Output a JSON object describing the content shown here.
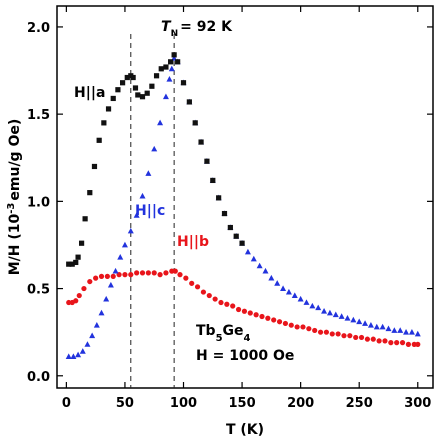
{
  "chart_data": {
    "type": "scatter",
    "xlabel": "T (K)",
    "ylabel_parts": [
      "M/H (10",
      "-3",
      "emu/g Oe)"
    ],
    "xlim": [
      -8,
      313
    ],
    "ylim": [
      -0.07,
      2.12
    ],
    "xticks": [
      0,
      50,
      100,
      150,
      200,
      250,
      300
    ],
    "yticks": [
      "0.0",
      "0.5",
      "1.0",
      "1.5",
      "2.0"
    ],
    "ytick_values": [
      0.0,
      0.5,
      1.0,
      1.5,
      2.0
    ],
    "grid": false,
    "vlines": [
      55,
      92
    ],
    "annotation_tn": {
      "prefix": "T",
      "sub": "N",
      "suffix": "= 92 K",
      "x": 92
    },
    "sample_parts": [
      "Tb",
      "5",
      "Ge",
      "4"
    ],
    "field_text": "H = 1000 Oe",
    "series": [
      {
        "name": "H||a",
        "color": "#111111",
        "marker": "square",
        "points": [
          [
            2,
            0.64
          ],
          [
            5,
            0.64
          ],
          [
            8,
            0.65
          ],
          [
            10,
            0.68
          ],
          [
            13,
            0.76
          ],
          [
            16,
            0.9
          ],
          [
            20,
            1.05
          ],
          [
            24,
            1.2
          ],
          [
            28,
            1.35
          ],
          [
            32,
            1.45
          ],
          [
            36,
            1.53
          ],
          [
            40,
            1.59
          ],
          [
            44,
            1.64
          ],
          [
            48,
            1.68
          ],
          [
            52,
            1.71
          ],
          [
            55,
            1.72
          ],
          [
            57,
            1.71
          ],
          [
            59,
            1.65
          ],
          [
            61,
            1.61
          ],
          [
            65,
            1.6
          ],
          [
            69,
            1.62
          ],
          [
            73,
            1.66
          ],
          [
            77,
            1.72
          ],
          [
            81,
            1.76
          ],
          [
            85,
            1.77
          ],
          [
            89,
            1.8
          ],
          [
            92,
            1.84
          ],
          [
            95,
            1.8
          ],
          [
            100,
            1.68
          ],
          [
            105,
            1.57
          ],
          [
            110,
            1.45
          ],
          [
            115,
            1.34
          ],
          [
            120,
            1.23
          ],
          [
            125,
            1.12
          ],
          [
            130,
            1.02
          ],
          [
            135,
            0.93
          ],
          [
            140,
            0.85
          ],
          [
            145,
            0.8
          ],
          [
            150,
            0.76
          ]
        ]
      },
      {
        "name": "H||c",
        "color": "#2233dd",
        "marker": "triangle",
        "points": [
          [
            2,
            0.11
          ],
          [
            6,
            0.11
          ],
          [
            10,
            0.12
          ],
          [
            14,
            0.14
          ],
          [
            18,
            0.18
          ],
          [
            22,
            0.23
          ],
          [
            26,
            0.29
          ],
          [
            30,
            0.36
          ],
          [
            34,
            0.44
          ],
          [
            38,
            0.52
          ],
          [
            42,
            0.6
          ],
          [
            46,
            0.68
          ],
          [
            50,
            0.75
          ],
          [
            55,
            0.83
          ],
          [
            60,
            0.92
          ],
          [
            65,
            1.03
          ],
          [
            70,
            1.16
          ],
          [
            75,
            1.3
          ],
          [
            80,
            1.45
          ],
          [
            85,
            1.6
          ],
          [
            88,
            1.7
          ],
          [
            90,
            1.76
          ],
          [
            92,
            1.82
          ],
          [
            95,
            1.8
          ],
          [
            100,
            1.68
          ],
          [
            105,
            1.57
          ],
          [
            110,
            1.45
          ],
          [
            115,
            1.34
          ],
          [
            120,
            1.23
          ],
          [
            125,
            1.12
          ],
          [
            130,
            1.02
          ],
          [
            135,
            0.93
          ],
          [
            140,
            0.85
          ],
          [
            145,
            0.8
          ],
          [
            150,
            0.76
          ],
          [
            155,
            0.71
          ],
          [
            160,
            0.67
          ],
          [
            165,
            0.63
          ],
          [
            170,
            0.6
          ],
          [
            175,
            0.56
          ],
          [
            180,
            0.53
          ],
          [
            185,
            0.5
          ],
          [
            190,
            0.48
          ],
          [
            195,
            0.46
          ],
          [
            200,
            0.44
          ],
          [
            205,
            0.42
          ],
          [
            210,
            0.4
          ],
          [
            215,
            0.39
          ],
          [
            220,
            0.37
          ],
          [
            225,
            0.36
          ],
          [
            230,
            0.35
          ],
          [
            235,
            0.34
          ],
          [
            240,
            0.33
          ],
          [
            245,
            0.32
          ],
          [
            250,
            0.31
          ],
          [
            255,
            0.3
          ],
          [
            260,
            0.29
          ],
          [
            265,
            0.28
          ],
          [
            270,
            0.28
          ],
          [
            275,
            0.27
          ],
          [
            280,
            0.26
          ],
          [
            285,
            0.26
          ],
          [
            290,
            0.25
          ],
          [
            295,
            0.25
          ],
          [
            300,
            0.24
          ]
        ]
      },
      {
        "name": "H||b",
        "color": "#e8151b",
        "marker": "circle",
        "points": [
          [
            2,
            0.42
          ],
          [
            5,
            0.42
          ],
          [
            8,
            0.43
          ],
          [
            11,
            0.46
          ],
          [
            15,
            0.5
          ],
          [
            20,
            0.54
          ],
          [
            25,
            0.56
          ],
          [
            30,
            0.57
          ],
          [
            35,
            0.57
          ],
          [
            40,
            0.57
          ],
          [
            45,
            0.58
          ],
          [
            50,
            0.58
          ],
          [
            55,
            0.58
          ],
          [
            60,
            0.59
          ],
          [
            65,
            0.59
          ],
          [
            70,
            0.59
          ],
          [
            75,
            0.59
          ],
          [
            80,
            0.58
          ],
          [
            85,
            0.59
          ],
          [
            90,
            0.6
          ],
          [
            93,
            0.6
          ],
          [
            97,
            0.58
          ],
          [
            102,
            0.56
          ],
          [
            107,
            0.53
          ],
          [
            112,
            0.51
          ],
          [
            117,
            0.48
          ],
          [
            122,
            0.46
          ],
          [
            127,
            0.44
          ],
          [
            132,
            0.42
          ],
          [
            137,
            0.41
          ],
          [
            142,
            0.4
          ],
          [
            147,
            0.38
          ],
          [
            152,
            0.37
          ],
          [
            157,
            0.36
          ],
          [
            162,
            0.35
          ],
          [
            167,
            0.34
          ],
          [
            172,
            0.33
          ],
          [
            177,
            0.32
          ],
          [
            182,
            0.31
          ],
          [
            187,
            0.3
          ],
          [
            192,
            0.29
          ],
          [
            197,
            0.28
          ],
          [
            202,
            0.28
          ],
          [
            207,
            0.27
          ],
          [
            212,
            0.26
          ],
          [
            217,
            0.25
          ],
          [
            222,
            0.25
          ],
          [
            227,
            0.24
          ],
          [
            232,
            0.24
          ],
          [
            237,
            0.23
          ],
          [
            242,
            0.23
          ],
          [
            247,
            0.22
          ],
          [
            252,
            0.22
          ],
          [
            257,
            0.21
          ],
          [
            262,
            0.21
          ],
          [
            267,
            0.2
          ],
          [
            272,
            0.2
          ],
          [
            277,
            0.19
          ],
          [
            282,
            0.19
          ],
          [
            287,
            0.19
          ],
          [
            292,
            0.18
          ],
          [
            297,
            0.18
          ],
          [
            300,
            0.18
          ]
        ]
      }
    ]
  }
}
